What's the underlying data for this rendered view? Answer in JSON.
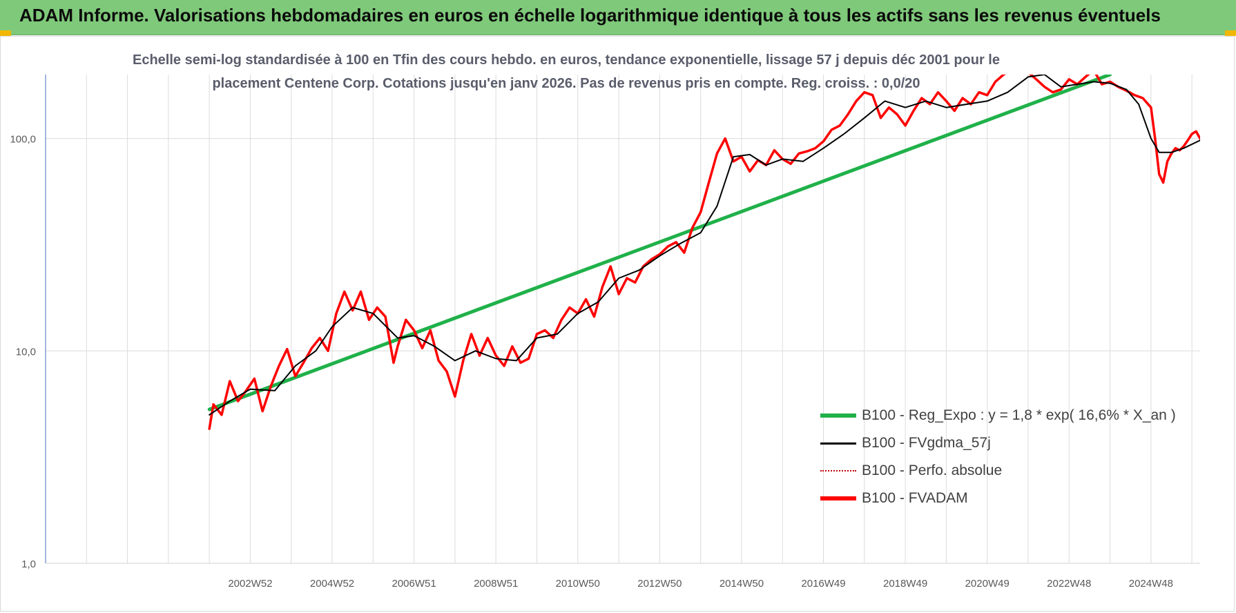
{
  "header": {
    "title": "ADAM Informe. Valorisations hebdomadaires en euros en échelle logarithmique identique à tous les actifs sans les revenus éventuels"
  },
  "colors": {
    "banner": "#7fc97a",
    "regression": "#20b14a",
    "smoothed": "#000000",
    "perfo": "#c00000",
    "fvadam": "#ff0000",
    "subtitle": "#595d6b"
  },
  "chart_data": {
    "type": "line",
    "subtitle": [
      "Echelle semi-log standardisée à 100 en Tfin des cours hebdo. en euros, tendance exponentielle, lissage 57 j depuis déc 2001 pour le",
      "placement Centene Corp. Cotations jusqu'en janv 2026. Pas de revenus pris en compte. Reg. croiss. : 0,0/20"
    ],
    "y_scale": "log",
    "ylim": [
      1,
      200
    ],
    "y_ticks": [
      {
        "value": 1,
        "label": "1,0"
      },
      {
        "value": 10,
        "label": "10,0"
      },
      {
        "value": 100,
        "label": "100,0"
      }
    ],
    "xlim": [
      1998.0,
      2026.2
    ],
    "x_ticks": [
      {
        "x": 2003.0,
        "label": "2002W52"
      },
      {
        "x": 2005.0,
        "label": "2004W52"
      },
      {
        "x": 2007.0,
        "label": "2006W51"
      },
      {
        "x": 2009.0,
        "label": "2008W51"
      },
      {
        "x": 2011.0,
        "label": "2010W50"
      },
      {
        "x": 2013.0,
        "label": "2012W50"
      },
      {
        "x": 2015.0,
        "label": "2014W50"
      },
      {
        "x": 2017.0,
        "label": "2016W49"
      },
      {
        "x": 2019.0,
        "label": "2018W49"
      },
      {
        "x": 2021.0,
        "label": "2020W49"
      },
      {
        "x": 2023.0,
        "label": "2022W48"
      },
      {
        "x": 2025.0,
        "label": "2024W48"
      }
    ],
    "grid": true,
    "legend_position": "bottom-right",
    "series": [
      {
        "name": "B100 - Reg_Expo : y = 1,8 * exp( 16,6% *  X_an )",
        "color": "#20b14a",
        "style": "solid",
        "x": [
          2002.0,
          2024.0
        ],
        "y": [
          5.3,
          200
        ]
      },
      {
        "name": "B100 - FVgdma_57j",
        "color": "#000000",
        "style": "solid",
        "x": [
          2002.0,
          2002.5,
          2003.0,
          2003.6,
          2004.1,
          2004.6,
          2005.0,
          2005.5,
          2006.0,
          2006.6,
          2007.0,
          2007.5,
          2008.0,
          2008.5,
          2009.0,
          2009.5,
          2010.0,
          2010.5,
          2011.0,
          2011.5,
          2012.0,
          2012.5,
          2013.0,
          2013.5,
          2014.0,
          2014.4,
          2014.8,
          2015.2,
          2015.6,
          2016.0,
          2016.5,
          2017.0,
          2017.5,
          2018.0,
          2018.5,
          2019.0,
          2019.5,
          2020.0,
          2020.5,
          2021.0,
          2021.5,
          2022.0,
          2022.4,
          2022.8,
          2023.2,
          2023.6,
          2024.0,
          2024.4,
          2024.7,
          2025.0,
          2025.2,
          2025.5,
          2025.8,
          2026.2
        ],
        "y": [
          5.0,
          5.8,
          6.6,
          6.5,
          8.5,
          10.0,
          13.0,
          16.0,
          15.0,
          11.5,
          11.8,
          10.5,
          9.0,
          10.0,
          9.2,
          9.0,
          11.5,
          12.0,
          15.0,
          17.0,
          22.0,
          24.0,
          28.0,
          32.0,
          36.0,
          48.0,
          82.0,
          84.0,
          75.0,
          80.0,
          78.0,
          90.0,
          105.0,
          125.0,
          150.0,
          140.0,
          150.0,
          140.0,
          145.0,
          150.0,
          165.0,
          195.0,
          200.0,
          175.0,
          180.0,
          185.0,
          182.0,
          170.0,
          145.0,
          100.0,
          86.0,
          86.0,
          90.0,
          98.0
        ]
      },
      {
        "name": "B100 - Perfo. absolue",
        "color": "#c00000",
        "style": "dotted",
        "x": [],
        "y": []
      },
      {
        "name": "B100 - FVADAM",
        "color": "#ff0000",
        "style": "solid",
        "x": [
          2002.0,
          2002.1,
          2002.3,
          2002.5,
          2002.7,
          2002.9,
          2003.1,
          2003.3,
          2003.5,
          2003.7,
          2003.9,
          2004.1,
          2004.3,
          2004.5,
          2004.7,
          2004.9,
          2005.1,
          2005.3,
          2005.5,
          2005.7,
          2005.9,
          2006.1,
          2006.3,
          2006.5,
          2006.6,
          2006.8,
          2007.0,
          2007.2,
          2007.4,
          2007.6,
          2007.8,
          2008.0,
          2008.2,
          2008.4,
          2008.6,
          2008.8,
          2009.0,
          2009.2,
          2009.4,
          2009.6,
          2009.8,
          2010.0,
          2010.2,
          2010.4,
          2010.6,
          2010.8,
          2011.0,
          2011.2,
          2011.4,
          2011.6,
          2011.8,
          2012.0,
          2012.2,
          2012.4,
          2012.6,
          2012.8,
          2013.0,
          2013.2,
          2013.4,
          2013.6,
          2013.8,
          2014.0,
          2014.2,
          2014.4,
          2014.6,
          2014.8,
          2015.0,
          2015.2,
          2015.4,
          2015.6,
          2015.8,
          2016.0,
          2016.2,
          2016.4,
          2016.6,
          2016.8,
          2017.0,
          2017.2,
          2017.4,
          2017.6,
          2017.8,
          2018.0,
          2018.2,
          2018.4,
          2018.6,
          2018.8,
          2019.0,
          2019.2,
          2019.4,
          2019.6,
          2019.8,
          2020.0,
          2020.2,
          2020.4,
          2020.6,
          2020.8,
          2021.0,
          2021.2,
          2021.4,
          2021.6,
          2021.8,
          2022.0,
          2022.2,
          2022.4,
          2022.6,
          2022.8,
          2023.0,
          2023.2,
          2023.4,
          2023.6,
          2023.8,
          2024.0,
          2024.2,
          2024.4,
          2024.6,
          2024.8,
          2025.0,
          2025.1,
          2025.2,
          2025.3,
          2025.4,
          2025.5,
          2025.6,
          2025.7,
          2025.8,
          2025.9,
          2026.0,
          2026.1,
          2026.2
        ],
        "y": [
          4.3,
          5.6,
          5.0,
          7.2,
          5.8,
          6.5,
          7.4,
          5.2,
          6.8,
          8.5,
          10.2,
          7.6,
          8.8,
          10.3,
          11.5,
          10.0,
          15.0,
          19.0,
          15.5,
          19.0,
          14.0,
          16.0,
          14.5,
          8.8,
          10.5,
          14.0,
          12.5,
          10.3,
          12.5,
          9.0,
          8.0,
          6.1,
          9.0,
          12.0,
          9.5,
          11.5,
          9.5,
          8.5,
          10.5,
          8.8,
          9.2,
          12.0,
          12.5,
          11.5,
          14.0,
          16.0,
          15.0,
          17.5,
          14.5,
          20.0,
          25.0,
          18.5,
          22.0,
          21.0,
          25.0,
          27.0,
          28.5,
          31.0,
          32.5,
          29.0,
          38.0,
          45.0,
          62.0,
          85.0,
          100.0,
          78.0,
          82.0,
          70.0,
          79.0,
          75.0,
          88.0,
          80.0,
          76.0,
          85.0,
          87.0,
          90.0,
          97.0,
          110.0,
          115.0,
          130.0,
          150.0,
          165.0,
          160.0,
          125.0,
          140.0,
          130.0,
          115.0,
          135.0,
          155.0,
          145.0,
          165.0,
          150.0,
          135.0,
          155.0,
          145.0,
          165.0,
          160.0,
          185.0,
          200.0,
          210.0,
          215.0,
          205.0,
          190.0,
          175.0,
          165.0,
          170.0,
          190.0,
          180.0,
          195.0,
          210.0,
          180.0,
          185.0,
          175.0,
          168.0,
          160.0,
          155.0,
          140.0,
          100.0,
          68.0,
          62.0,
          78.0,
          85.0,
          90.0,
          88.0,
          92.0,
          98.0,
          105.0,
          108.0,
          100.0
        ]
      }
    ]
  }
}
